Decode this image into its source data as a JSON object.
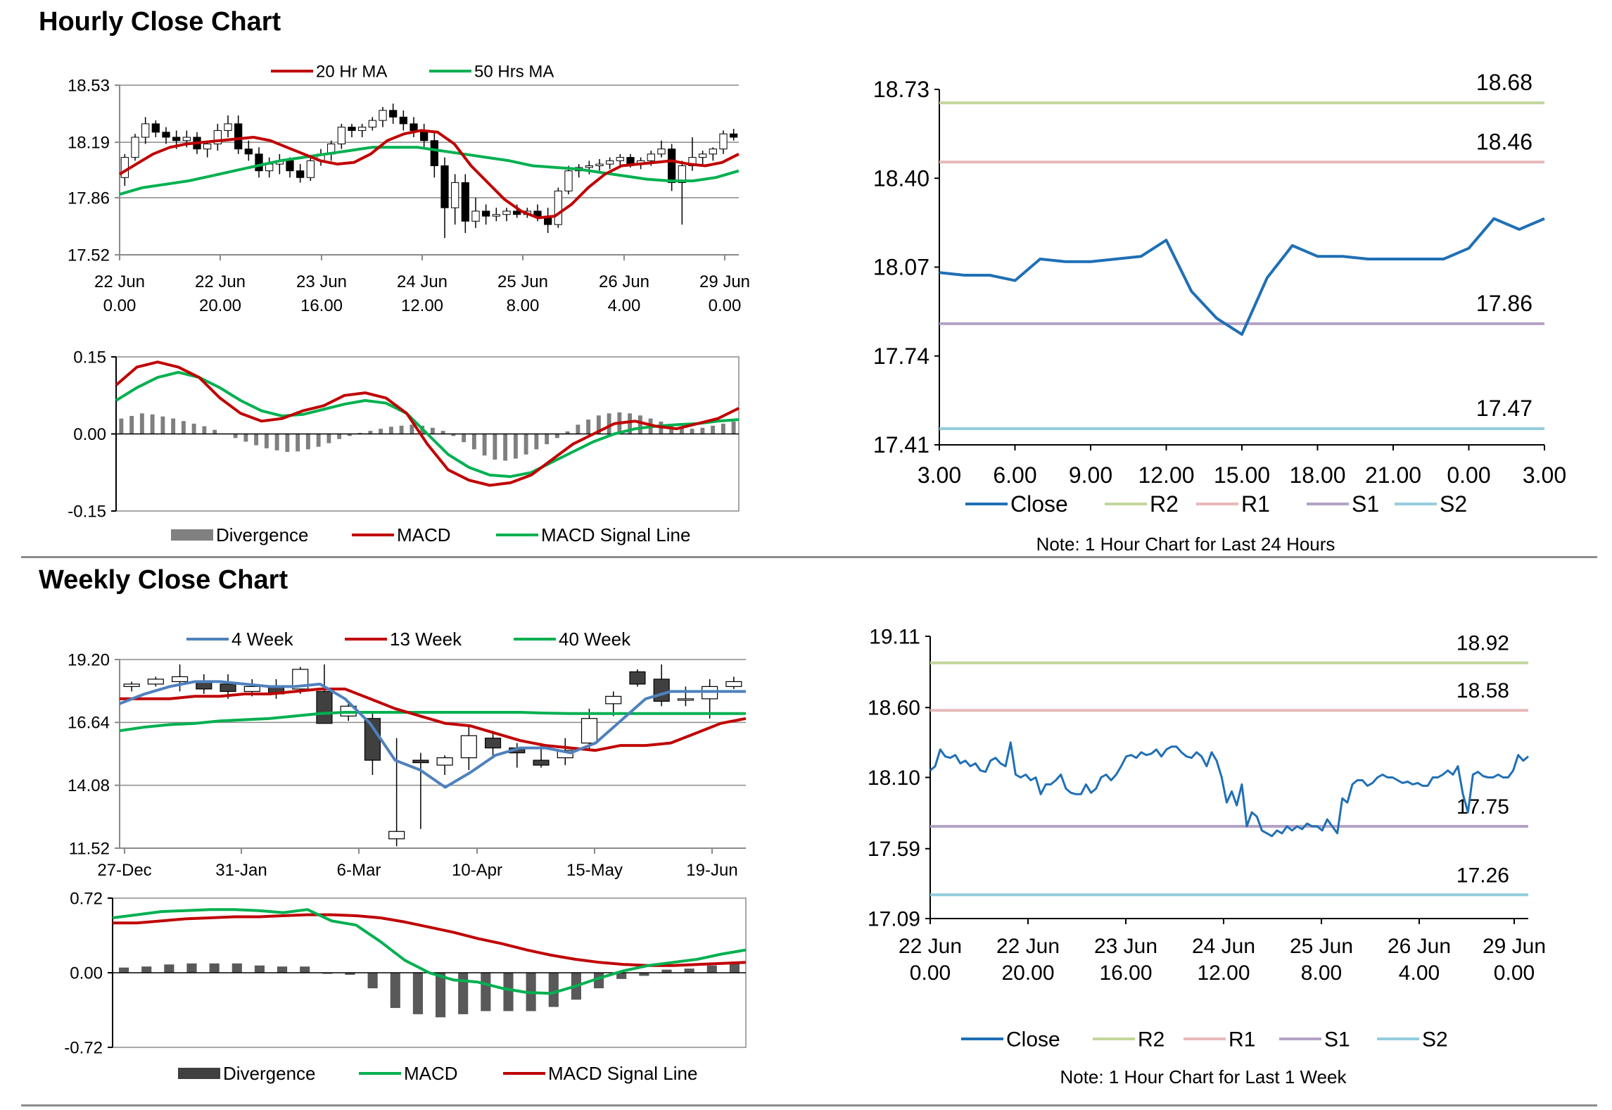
{
  "sections": {
    "hourly_title": "Hourly Close Chart",
    "weekly_title": "Weekly Close Chart"
  },
  "colors": {
    "ma20": "#c00000",
    "ma50": "#00b050",
    "macd_red": "#c00000",
    "macd_green": "#00b050",
    "close": "#1f6fb5",
    "r2": "#c3d69b",
    "r1": "#e6b9b8",
    "s1": "#b3a2c7",
    "s2": "#93cddd",
    "div": "#7f7f7f",
    "wk4": "#4f81bd"
  },
  "chart_data": [
    {
      "id": "hourly-candle",
      "type": "candlestick",
      "legend": [
        "20 Hr MA",
        "50 Hrs MA"
      ],
      "ylim": [
        17.52,
        18.53
      ],
      "yticks": [
        "18.53",
        "18.19",
        "17.86",
        "17.52"
      ],
      "xticks": [
        [
          "22 Jun",
          "0.00"
        ],
        [
          "22 Jun",
          "20.00"
        ],
        [
          "23 Jun",
          "16.00"
        ],
        [
          "24 Jun",
          "12.00"
        ],
        [
          "25 Jun",
          "8.00"
        ],
        [
          "26 Jun",
          "4.00"
        ],
        [
          "29 Jun",
          "0.00"
        ]
      ],
      "candles": [
        [
          17.98,
          18.12,
          17.93,
          18.1
        ],
        [
          18.1,
          18.24,
          18.08,
          18.22
        ],
        [
          18.22,
          18.34,
          18.18,
          18.3
        ],
        [
          18.3,
          18.32,
          18.22,
          18.25
        ],
        [
          18.25,
          18.28,
          18.18,
          18.22
        ],
        [
          18.22,
          18.26,
          18.15,
          18.2
        ],
        [
          18.2,
          18.26,
          18.16,
          18.22
        ],
        [
          18.22,
          18.25,
          18.12,
          18.15
        ],
        [
          18.15,
          18.2,
          18.1,
          18.18
        ],
        [
          18.18,
          18.3,
          18.14,
          18.26
        ],
        [
          18.26,
          18.35,
          18.22,
          18.3
        ],
        [
          18.3,
          18.35,
          18.12,
          18.15
        ],
        [
          18.15,
          18.2,
          18.08,
          18.12
        ],
        [
          18.12,
          18.16,
          17.98,
          18.02
        ],
        [
          18.02,
          18.1,
          17.98,
          18.06
        ],
        [
          18.06,
          18.12,
          18.0,
          18.08
        ],
        [
          18.08,
          18.1,
          17.98,
          18.02
        ],
        [
          18.02,
          18.06,
          17.95,
          17.98
        ],
        [
          17.98,
          18.1,
          17.96,
          18.08
        ],
        [
          18.08,
          18.15,
          18.05,
          18.12
        ],
        [
          18.12,
          18.2,
          18.08,
          18.18
        ],
        [
          18.18,
          18.3,
          18.15,
          18.28
        ],
        [
          18.28,
          18.3,
          18.22,
          18.26
        ],
        [
          18.26,
          18.3,
          18.22,
          18.28
        ],
        [
          18.28,
          18.34,
          18.26,
          18.32
        ],
        [
          18.32,
          18.4,
          18.28,
          18.38
        ],
        [
          18.38,
          18.42,
          18.3,
          18.34
        ],
        [
          18.34,
          18.38,
          18.26,
          18.3
        ],
        [
          18.3,
          18.34,
          18.22,
          18.26
        ],
        [
          18.26,
          18.3,
          18.16,
          18.2
        ],
        [
          18.2,
          18.25,
          17.98,
          18.05
        ],
        [
          18.05,
          18.1,
          17.62,
          17.8
        ],
        [
          17.8,
          18.0,
          17.7,
          17.95
        ],
        [
          17.95,
          18.0,
          17.65,
          17.72
        ],
        [
          17.72,
          17.86,
          17.68,
          17.78
        ],
        [
          17.78,
          17.82,
          17.7,
          17.75
        ],
        [
          17.75,
          17.8,
          17.72,
          17.76
        ],
        [
          17.76,
          17.8,
          17.72,
          17.78
        ],
        [
          17.78,
          17.82,
          17.74,
          17.76
        ],
        [
          17.76,
          17.8,
          17.74,
          17.78
        ],
        [
          17.78,
          17.82,
          17.72,
          17.75
        ],
        [
          17.75,
          17.8,
          17.65,
          17.7
        ],
        [
          17.7,
          17.92,
          17.68,
          17.9
        ],
        [
          17.9,
          18.05,
          17.88,
          18.02
        ],
        [
          18.02,
          18.06,
          17.98,
          18.04
        ],
        [
          18.04,
          18.08,
          18.0,
          18.05
        ],
        [
          18.05,
          18.09,
          18.02,
          18.06
        ],
        [
          18.06,
          18.1,
          18.03,
          18.08
        ],
        [
          18.08,
          18.12,
          18.05,
          18.1
        ],
        [
          18.1,
          18.12,
          18.04,
          18.06
        ],
        [
          18.06,
          18.1,
          18.03,
          18.08
        ],
        [
          18.08,
          18.14,
          18.05,
          18.12
        ],
        [
          18.12,
          18.2,
          18.1,
          18.15
        ],
        [
          18.15,
          18.18,
          17.9,
          17.95
        ],
        [
          17.95,
          18.08,
          17.7,
          18.05
        ],
        [
          18.05,
          18.22,
          18.02,
          18.1
        ],
        [
          18.1,
          18.14,
          18.06,
          18.12
        ],
        [
          18.12,
          18.16,
          18.08,
          18.15
        ],
        [
          18.15,
          18.26,
          18.12,
          18.24
        ],
        [
          18.24,
          18.27,
          18.2,
          18.22
        ]
      ],
      "ma20": [
        18.0,
        18.06,
        18.12,
        18.16,
        18.18,
        18.19,
        18.2,
        18.21,
        18.22,
        18.2,
        18.16,
        18.12,
        18.08,
        18.06,
        18.07,
        18.12,
        18.2,
        18.24,
        18.26,
        18.25,
        18.18,
        18.05,
        17.95,
        17.85,
        17.78,
        17.74,
        17.75,
        17.82,
        17.92,
        18.0,
        18.05,
        18.06,
        18.07,
        18.08,
        18.06,
        18.05,
        18.07,
        18.12
      ],
      "ma50": [
        17.88,
        17.92,
        17.94,
        17.96,
        17.99,
        18.02,
        18.05,
        18.08,
        18.1,
        18.12,
        18.14,
        18.16,
        18.16,
        18.16,
        18.14,
        18.12,
        18.1,
        18.08,
        18.05,
        18.04,
        18.03,
        18.01,
        17.99,
        17.97,
        17.96,
        17.96,
        17.98,
        18.02
      ]
    },
    {
      "id": "hourly-macd",
      "type": "macd",
      "legend": [
        "Divergence",
        "MACD",
        "MACD Signal Line"
      ],
      "ylim": [
        -0.15,
        0.15
      ],
      "yticks": [
        "0.15",
        "0.00",
        "-0.15"
      ],
      "divergence": [
        0.03,
        0.035,
        0.04,
        0.038,
        0.034,
        0.03,
        0.025,
        0.02,
        0.015,
        0.008,
        0.0,
        -0.008,
        -0.015,
        -0.022,
        -0.028,
        -0.032,
        -0.035,
        -0.034,
        -0.03,
        -0.025,
        -0.018,
        -0.01,
        -0.004,
        0.002,
        0.006,
        0.01,
        0.014,
        0.016,
        0.018,
        0.016,
        0.012,
        0.006,
        -0.004,
        -0.016,
        -0.03,
        -0.042,
        -0.05,
        -0.052,
        -0.048,
        -0.04,
        -0.03,
        -0.02,
        -0.008,
        0.005,
        0.018,
        0.028,
        0.036,
        0.04,
        0.042,
        0.04,
        0.036,
        0.03,
        0.024,
        0.018,
        0.012,
        0.01,
        0.012,
        0.016,
        0.02,
        0.024
      ],
      "macd": [
        0.095,
        0.13,
        0.14,
        0.13,
        0.11,
        0.07,
        0.04,
        0.025,
        0.03,
        0.045,
        0.055,
        0.075,
        0.08,
        0.07,
        0.04,
        -0.02,
        -0.07,
        -0.09,
        -0.1,
        -0.095,
        -0.08,
        -0.05,
        -0.02,
        0.0,
        0.02,
        0.025,
        0.015,
        0.01,
        0.02,
        0.03,
        0.05
      ],
      "signal": [
        0.065,
        0.09,
        0.11,
        0.12,
        0.11,
        0.09,
        0.065,
        0.045,
        0.035,
        0.038,
        0.048,
        0.058,
        0.065,
        0.06,
        0.04,
        0.0,
        -0.04,
        -0.065,
        -0.08,
        -0.083,
        -0.075,
        -0.055,
        -0.035,
        -0.015,
        0.0,
        0.01,
        0.015,
        0.018,
        0.02,
        0.025,
        0.028
      ]
    },
    {
      "id": "hourly-close",
      "type": "line",
      "legend": [
        "Close",
        "R2",
        "R1",
        "S1",
        "S2"
      ],
      "note": "Note: 1 Hour Chart for Last 24 Hours",
      "ylim": [
        17.41,
        18.73
      ],
      "yticks": [
        "18.73",
        "18.40",
        "18.07",
        "17.74",
        "17.41"
      ],
      "xticks": [
        "3.00",
        "6.00",
        "9.00",
        "12.00",
        "15.00",
        "18.00",
        "21.00",
        "0.00",
        "3.00"
      ],
      "close": [
        18.05,
        18.04,
        18.04,
        18.02,
        18.1,
        18.09,
        18.09,
        18.1,
        18.11,
        18.17,
        17.98,
        17.88,
        17.82,
        18.03,
        18.15,
        18.11,
        18.11,
        18.1,
        18.1,
        18.1,
        18.1,
        18.14,
        18.25,
        18.21,
        18.25
      ],
      "levels": {
        "R2": 18.68,
        "R1": 18.46,
        "S1": 17.86,
        "S2": 17.47
      },
      "level_labels": {
        "R2": "18.68",
        "R1": "18.46",
        "S1": "17.86",
        "S2": "17.47"
      }
    },
    {
      "id": "weekly-candle",
      "type": "candlestick",
      "legend": [
        "4 Week",
        "13 Week",
        "40 Week"
      ],
      "ylim": [
        11.52,
        19.2
      ],
      "yticks": [
        "19.20",
        "16.64",
        "14.08",
        "11.52"
      ],
      "xticks": [
        "27-Dec",
        "31-Jan",
        "6-Mar",
        "10-Apr",
        "15-May",
        "19-Jun"
      ],
      "candles": [
        [
          18.1,
          18.3,
          17.9,
          18.2
        ],
        [
          18.2,
          18.5,
          18.1,
          18.4
        ],
        [
          18.3,
          19.0,
          17.9,
          18.5
        ],
        [
          18.3,
          18.6,
          17.8,
          18.0
        ],
        [
          18.2,
          18.6,
          17.6,
          17.9
        ],
        [
          17.9,
          18.4,
          17.7,
          18.1
        ],
        [
          18.1,
          18.4,
          17.6,
          17.8
        ],
        [
          18.0,
          18.9,
          17.8,
          18.8
        ],
        [
          17.9,
          19.0,
          16.6,
          16.6
        ],
        [
          16.9,
          17.4,
          16.7,
          17.3
        ],
        [
          16.8,
          17.0,
          14.5,
          15.1
        ],
        [
          11.9,
          16.0,
          11.6,
          12.2
        ],
        [
          15.1,
          15.4,
          12.3,
          15.0
        ],
        [
          14.9,
          15.3,
          14.5,
          15.2
        ],
        [
          15.2,
          16.5,
          14.7,
          16.1
        ],
        [
          16.0,
          16.3,
          15.2,
          15.6
        ],
        [
          15.6,
          15.8,
          14.8,
          15.4
        ],
        [
          15.1,
          15.8,
          14.8,
          14.9
        ],
        [
          15.2,
          16.0,
          14.9,
          15.5
        ],
        [
          15.8,
          17.2,
          15.5,
          16.8
        ],
        [
          17.4,
          17.9,
          16.9,
          17.7
        ],
        [
          18.7,
          18.8,
          18.1,
          18.2
        ],
        [
          18.4,
          19.0,
          17.3,
          17.5
        ],
        [
          17.6,
          18.1,
          17.3,
          17.6
        ],
        [
          17.6,
          18.4,
          16.8,
          18.1
        ],
        [
          18.1,
          18.5,
          18.0,
          18.3
        ]
      ],
      "wk4": [
        17.4,
        17.8,
        18.1,
        18.3,
        18.3,
        18.2,
        18.1,
        18.1,
        18.2,
        17.6,
        16.6,
        15.1,
        14.7,
        14.0,
        14.6,
        15.3,
        15.6,
        15.6,
        15.4,
        15.8,
        16.7,
        17.6,
        17.9,
        17.9,
        17.9,
        17.9
      ],
      "wk13": [
        17.6,
        17.6,
        17.6,
        17.7,
        17.7,
        17.8,
        17.8,
        17.9,
        18.0,
        18.0,
        17.6,
        17.2,
        16.9,
        16.6,
        16.5,
        16.2,
        15.9,
        15.7,
        15.6,
        15.5,
        15.7,
        15.7,
        15.8,
        16.2,
        16.6,
        16.8
      ],
      "wk40": [
        16.3,
        16.45,
        16.55,
        16.6,
        16.7,
        16.75,
        16.8,
        16.9,
        17.0,
        17.05,
        17.05,
        17.05,
        17.05,
        17.05,
        17.05,
        17.05,
        17.05,
        17.02,
        17.0,
        17.0,
        17.0,
        17.0,
        17.0,
        17.0,
        17.0,
        17.0
      ]
    },
    {
      "id": "weekly-macd",
      "type": "macd",
      "legend": [
        "Divergence",
        "MACD",
        "MACD Signal Line"
      ],
      "ylim": [
        -0.72,
        0.72
      ],
      "yticks": [
        "0.72",
        "0.00",
        "-0.72"
      ],
      "divergence": [
        0.05,
        0.06,
        0.08,
        0.09,
        0.09,
        0.09,
        0.07,
        0.06,
        0.06,
        -0.01,
        -0.02,
        -0.15,
        -0.34,
        -0.4,
        -0.43,
        -0.4,
        -0.37,
        -0.37,
        -0.37,
        -0.33,
        -0.26,
        -0.15,
        -0.06,
        -0.03,
        0.03,
        0.04,
        0.07,
        0.1
      ],
      "macd": [
        0.53,
        0.56,
        0.59,
        0.6,
        0.61,
        0.61,
        0.6,
        0.58,
        0.61,
        0.5,
        0.46,
        0.3,
        0.12,
        0.0,
        -0.07,
        -0.09,
        -0.15,
        -0.19,
        -0.2,
        -0.13,
        -0.05,
        0.02,
        0.07,
        0.1,
        0.13,
        0.18,
        0.22
      ],
      "signal": [
        0.48,
        0.48,
        0.5,
        0.52,
        0.53,
        0.54,
        0.54,
        0.55,
        0.56,
        0.56,
        0.55,
        0.53,
        0.49,
        0.44,
        0.39,
        0.33,
        0.28,
        0.22,
        0.17,
        0.13,
        0.1,
        0.08,
        0.07,
        0.07,
        0.08,
        0.09,
        0.1
      ]
    },
    {
      "id": "weekly-close",
      "type": "line",
      "legend": [
        "Close",
        "R2",
        "R1",
        "S1",
        "S2"
      ],
      "note": "Note: 1 Hour Chart for Last 1 Week",
      "ylim": [
        17.09,
        19.11
      ],
      "yticks": [
        "19.11",
        "18.60",
        "18.10",
        "17.59",
        "17.09"
      ],
      "xticks": [
        [
          "22 Jun",
          "0.00"
        ],
        [
          "22 Jun",
          "20.00"
        ],
        [
          "23 Jun",
          "16.00"
        ],
        [
          "24 Jun",
          "12.00"
        ],
        [
          "25 Jun",
          "8.00"
        ],
        [
          "26 Jun",
          "4.00"
        ],
        [
          "29 Jun",
          "0.00"
        ]
      ],
      "close": [
        18.15,
        18.18,
        18.3,
        18.25,
        18.24,
        18.26,
        18.2,
        18.22,
        18.18,
        18.2,
        18.15,
        18.14,
        18.22,
        18.24,
        18.2,
        18.18,
        18.35,
        18.12,
        18.1,
        18.12,
        18.08,
        18.1,
        17.98,
        18.05,
        18.05,
        18.08,
        18.12,
        18.02,
        17.99,
        17.98,
        17.98,
        18.05,
        17.99,
        18.02,
        18.1,
        18.12,
        18.08,
        18.12,
        18.18,
        18.25,
        18.26,
        18.24,
        18.28,
        18.26,
        18.27,
        18.3,
        18.25,
        18.3,
        18.32,
        18.32,
        18.28,
        18.25,
        18.24,
        18.28,
        18.25,
        18.18,
        18.28,
        18.22,
        18.1,
        17.92,
        18.0,
        17.9,
        18.05,
        17.75,
        17.85,
        17.82,
        17.72,
        17.7,
        17.68,
        17.72,
        17.7,
        17.75,
        17.72,
        17.75,
        17.73,
        17.77,
        17.75,
        17.75,
        17.72,
        17.8,
        17.75,
        17.7,
        17.95,
        17.92,
        18.05,
        18.08,
        18.08,
        18.04,
        18.06,
        18.1,
        18.12,
        18.1,
        18.1,
        18.08,
        18.06,
        18.07,
        18.05,
        18.06,
        18.04,
        18.04,
        18.1,
        18.1,
        18.12,
        18.15,
        18.12,
        18.18,
        17.98,
        17.85,
        18.12,
        18.14,
        18.11,
        18.1,
        18.1,
        18.12,
        18.1,
        18.1,
        18.15,
        18.26,
        18.22,
        18.25
      ],
      "levels": {
        "R2": 18.92,
        "R1": 18.58,
        "S1": 17.75,
        "S2": 17.26
      },
      "level_labels": {
        "R2": "18.92",
        "R1": "18.58",
        "S1": "17.75",
        "S2": "17.26"
      }
    }
  ]
}
